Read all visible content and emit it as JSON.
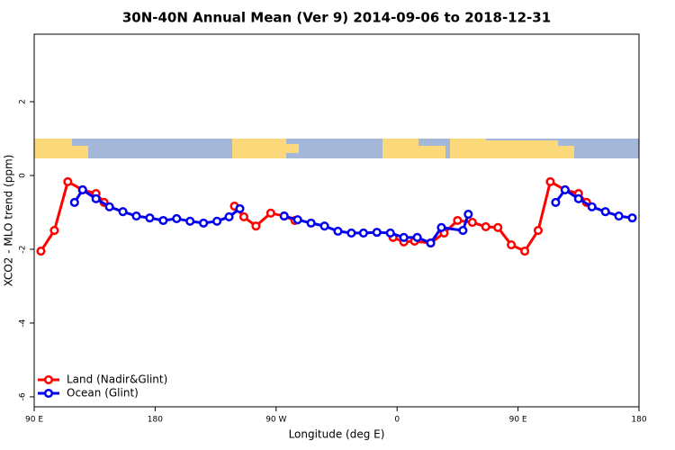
{
  "chart_data": {
    "type": "line",
    "title": "30N-40N Annual Mean (Ver 9)   2014-09-06 to 2018-12-31",
    "x_label": "Longitude (deg E)",
    "y_label": "XCO2 - MLO trend (ppm)",
    "xlim": [
      90,
      540
    ],
    "ylim": [
      -6.27,
      3.83
    ],
    "xticks": [
      {
        "value": 90,
        "label": "90 E"
      },
      180,
      {
        "value": 270,
        "label": "90 W"
      },
      {
        "value": 360,
        "label": "0"
      },
      {
        "value": 450,
        "label": "90 E"
      },
      {
        "value": 540,
        "label": "180"
      }
    ],
    "yticks": [
      -6,
      -4,
      -2,
      0,
      2
    ],
    "legend": "bottom-left",
    "series": [
      {
        "name": "Land (Nadir&Glint)",
        "color": "#ff0000",
        "x": [
          95,
          105,
          115,
          126,
          136,
          142,
          null,
          239,
          246,
          255,
          266,
          276,
          284,
          null,
          357,
          365,
          373,
          385,
          395,
          405,
          416,
          426,
          435,
          445,
          455,
          465,
          474,
          485,
          495,
          501
        ],
        "values": [
          -2.05,
          -1.49,
          -0.17,
          -0.39,
          -0.49,
          -0.73,
          null,
          -0.83,
          -1.12,
          -1.37,
          -1.02,
          -1.1,
          -1.22,
          null,
          -1.68,
          -1.8,
          -1.78,
          -1.83,
          -1.56,
          -1.22,
          -1.27,
          -1.39,
          -1.41,
          -1.88,
          -2.05,
          -1.49,
          -0.17,
          -0.39,
          -0.49,
          -0.73
        ]
      },
      {
        "name": "Ocean (Glint)",
        "color": "#0000ee",
        "x": [
          120,
          126,
          136,
          146,
          156,
          166,
          176,
          186,
          196,
          206,
          216,
          226,
          235,
          243,
          null,
          276,
          286,
          296,
          306,
          316,
          326,
          335,
          345,
          355,
          365,
          375,
          385,
          393,
          409,
          413,
          null,
          478,
          485,
          495,
          505,
          515,
          525,
          535
        ],
        "values": [
          -0.73,
          -0.39,
          -0.63,
          -0.85,
          -0.98,
          -1.1,
          -1.15,
          -1.22,
          -1.17,
          -1.24,
          -1.29,
          -1.24,
          -1.12,
          -0.9,
          null,
          -1.1,
          -1.2,
          -1.29,
          -1.37,
          -1.51,
          -1.56,
          -1.56,
          -1.54,
          -1.56,
          -1.68,
          -1.68,
          -1.83,
          -1.41,
          -1.49,
          -1.05,
          null,
          -0.73,
          -0.39,
          -0.63,
          -0.85,
          -0.98,
          -1.1,
          -1.15
        ]
      }
    ]
  }
}
